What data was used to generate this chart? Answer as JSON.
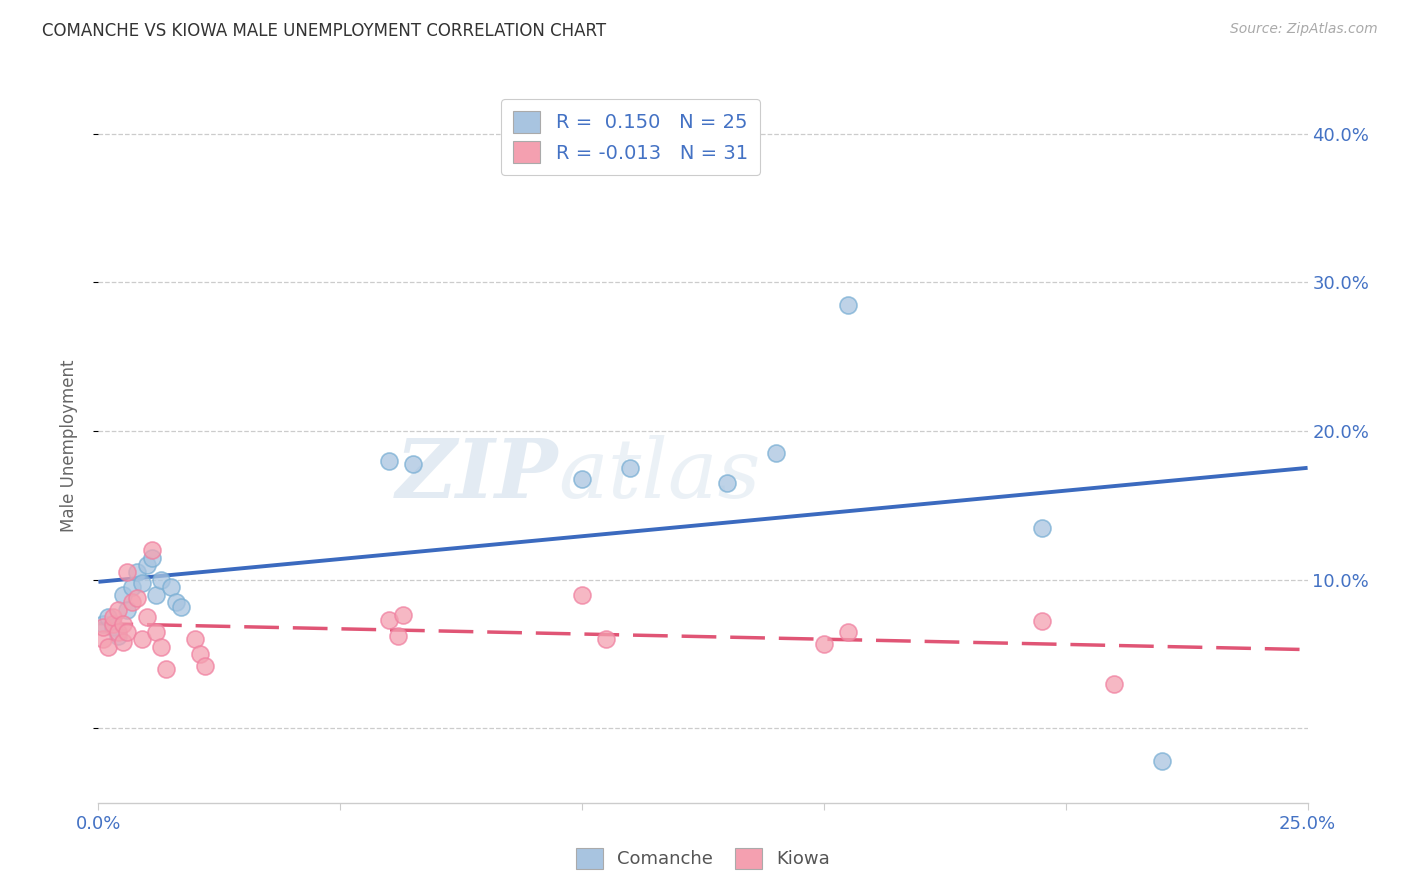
{
  "title": "COMANCHE VS KIOWA MALE UNEMPLOYMENT CORRELATION CHART",
  "source": "Source: ZipAtlas.com",
  "ylabel": "Male Unemployment",
  "xlim": [
    0.0,
    0.25
  ],
  "ylim": [
    -0.05,
    0.43
  ],
  "xticks": [
    0.0,
    0.05,
    0.1,
    0.15,
    0.2,
    0.25
  ],
  "xtick_labels": [
    "0.0%",
    "",
    "",
    "",
    "",
    "25.0%"
  ],
  "ytick_positions": [
    0.0,
    0.1,
    0.2,
    0.3,
    0.4
  ],
  "ytick_labels": [
    "",
    "10.0%",
    "20.0%",
    "30.0%",
    "40.0%"
  ],
  "comanche_color": "#a8c4e0",
  "kiowa_color": "#f4a0b0",
  "comanche_edge_color": "#7aafd4",
  "kiowa_edge_color": "#f080a0",
  "comanche_line_color": "#3b6abf",
  "kiowa_line_color": "#e05575",
  "r_comanche": 0.15,
  "n_comanche": 25,
  "r_kiowa": -0.013,
  "n_kiowa": 31,
  "comanche_x": [
    0.001,
    0.002,
    0.003,
    0.004,
    0.005,
    0.006,
    0.007,
    0.008,
    0.009,
    0.01,
    0.011,
    0.012,
    0.013,
    0.015,
    0.016,
    0.017,
    0.06,
    0.065,
    0.1,
    0.11,
    0.13,
    0.14,
    0.155,
    0.195,
    0.22
  ],
  "comanche_y": [
    0.07,
    0.075,
    0.068,
    0.062,
    0.09,
    0.08,
    0.095,
    0.105,
    0.098,
    0.11,
    0.115,
    0.09,
    0.1,
    0.095,
    0.085,
    0.082,
    0.18,
    0.178,
    0.168,
    0.175,
    0.165,
    0.185,
    0.285,
    0.135,
    -0.022
  ],
  "kiowa_x": [
    0.001,
    0.001,
    0.002,
    0.003,
    0.003,
    0.004,
    0.004,
    0.005,
    0.005,
    0.006,
    0.006,
    0.007,
    0.008,
    0.009,
    0.01,
    0.011,
    0.012,
    0.013,
    0.014,
    0.02,
    0.021,
    0.022,
    0.06,
    0.062,
    0.063,
    0.1,
    0.105,
    0.15,
    0.155,
    0.195,
    0.21
  ],
  "kiowa_y": [
    0.06,
    0.068,
    0.055,
    0.07,
    0.075,
    0.065,
    0.08,
    0.058,
    0.07,
    0.065,
    0.105,
    0.085,
    0.088,
    0.06,
    0.075,
    0.12,
    0.065,
    0.055,
    0.04,
    0.06,
    0.05,
    0.042,
    0.073,
    0.062,
    0.076,
    0.09,
    0.06,
    0.057,
    0.065,
    0.072,
    0.03
  ]
}
